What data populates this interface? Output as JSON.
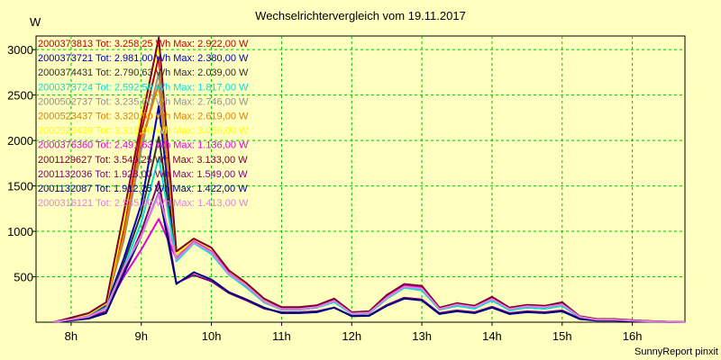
{
  "chart_data": {
    "type": "line",
    "title": "Wechselrichtervergleich vom 19.11.2017",
    "ylabel": "W",
    "footer": "SunnyReport pinxit",
    "x_ticks": [
      "8h",
      "9h",
      "10h",
      "11h",
      "12h",
      "13h",
      "14h",
      "15h",
      "16h"
    ],
    "y_ticks": [
      500,
      1000,
      1500,
      2000,
      2500,
      3000
    ],
    "xlim": [
      "07:30",
      "16:45"
    ],
    "ylim": [
      0,
      3150
    ],
    "grid": true,
    "legend_position": "top-left",
    "x": [
      "07:45",
      "08:00",
      "08:15",
      "08:30",
      "08:45",
      "09:00",
      "09:15",
      "09:30",
      "09:45",
      "10:00",
      "10:15",
      "10:30",
      "10:45",
      "11:00",
      "11:15",
      "11:30",
      "11:45",
      "12:00",
      "12:15",
      "12:30",
      "12:45",
      "13:00",
      "13:15",
      "13:30",
      "13:45",
      "14:00",
      "14:15",
      "14:30",
      "14:45",
      "15:00",
      "15:15",
      "15:30",
      "15:45",
      "16:00",
      "16:15",
      "16:30",
      "16:45"
    ],
    "series": [
      {
        "name": "2000373813",
        "label": "2000373813 Tot: 3.258,25 Wh Max: 2.922,00 W",
        "color": "#C00000",
        "values": [
          0,
          40,
          80,
          200,
          1000,
          2100,
          2922,
          760,
          900,
          800,
          560,
          420,
          240,
          150,
          150,
          170,
          240,
          100,
          110,
          280,
          400,
          390,
          150,
          200,
          170,
          260,
          150,
          180,
          170,
          200,
          60,
          30,
          30,
          20,
          10,
          5,
          0
        ]
      },
      {
        "name": "2000373721",
        "label": "2000373721 Tot: 2.981,00 Wh Max: 2.380,00 W",
        "color": "#0000C0",
        "values": [
          0,
          40,
          70,
          180,
          700,
          1300,
          2380,
          690,
          890,
          770,
          540,
          400,
          230,
          140,
          140,
          160,
          230,
          95,
          105,
          270,
          390,
          370,
          140,
          190,
          160,
          250,
          140,
          170,
          160,
          190,
          55,
          28,
          28,
          18,
          10,
          5,
          0
        ]
      },
      {
        "name": "2000374431",
        "label": "2000374431 Tot: 2.790,63 Wh Max: 2.039,00 W",
        "color": "#303030",
        "values": [
          0,
          35,
          60,
          170,
          650,
          1200,
          2039,
          680,
          880,
          760,
          530,
          390,
          220,
          140,
          140,
          160,
          230,
          95,
          100,
          260,
          380,
          360,
          140,
          180,
          160,
          240,
          140,
          160,
          150,
          180,
          55,
          25,
          25,
          18,
          10,
          5,
          0
        ]
      },
      {
        "name": "2000373724",
        "label": "2000373724 Tot: 2.592,50 Wh Max: 1.817,00 W",
        "color": "#00E0E0",
        "values": [
          0,
          35,
          60,
          160,
          600,
          1100,
          1817,
          670,
          870,
          750,
          520,
          380,
          220,
          140,
          140,
          160,
          220,
          90,
          100,
          260,
          380,
          350,
          140,
          180,
          150,
          240,
          130,
          160,
          150,
          180,
          50,
          25,
          25,
          15,
          8,
          4,
          0
        ]
      },
      {
        "name": "2000502737",
        "label": "2000502737 Tot: 3.235,00 Wh Max: 2.746,00 W",
        "color": "#909090",
        "values": [
          0,
          40,
          80,
          200,
          900,
          1900,
          2746,
          740,
          890,
          790,
          550,
          410,
          240,
          150,
          150,
          170,
          240,
          100,
          110,
          280,
          400,
          380,
          150,
          200,
          170,
          260,
          150,
          180,
          170,
          200,
          60,
          30,
          30,
          20,
          10,
          5,
          0
        ]
      },
      {
        "name": "2000523437",
        "label": "2000523437 Tot: 3.320,50 Wh Max: 2.619,00 W",
        "color": "#E08000",
        "values": [
          0,
          45,
          90,
          210,
          950,
          2000,
          2619,
          760,
          910,
          810,
          560,
          420,
          250,
          160,
          160,
          180,
          250,
          105,
          115,
          290,
          410,
          390,
          150,
          200,
          170,
          270,
          150,
          180,
          170,
          210,
          60,
          30,
          30,
          20,
          10,
          5,
          0
        ]
      },
      {
        "name": "2000523439",
        "label": "2000523439 Tot: 3.316,00 Wh Max: 3.056,00 W",
        "color": "#FFFF00",
        "values": [
          0,
          45,
          90,
          210,
          1100,
          2300,
          3056,
          750,
          900,
          800,
          560,
          420,
          250,
          160,
          160,
          180,
          250,
          105,
          115,
          290,
          410,
          390,
          150,
          200,
          170,
          270,
          150,
          180,
          170,
          210,
          60,
          30,
          30,
          20,
          10,
          5,
          0
        ]
      },
      {
        "name": "2000376360",
        "label": "2000376360 Tot: 2.491,63 Wh Max: 1.136,00 W",
        "color": "#E000E0",
        "values": [
          0,
          30,
          60,
          150,
          500,
          800,
          1136,
          700,
          890,
          780,
          540,
          400,
          230,
          150,
          150,
          170,
          240,
          100,
          110,
          280,
          400,
          380,
          150,
          200,
          170,
          260,
          150,
          180,
          170,
          200,
          60,
          30,
          30,
          20,
          10,
          5,
          0
        ]
      },
      {
        "name": "2001129627",
        "label": "2001129627 Tot: 3.540,25 Wh Max: 3.133,00 W",
        "color": "#800030",
        "values": [
          0,
          50,
          100,
          220,
          1200,
          2200,
          3133,
          780,
          920,
          820,
          570,
          430,
          260,
          165,
          165,
          185,
          260,
          110,
          120,
          300,
          420,
          400,
          160,
          210,
          180,
          280,
          160,
          190,
          180,
          220,
          65,
          35,
          35,
          22,
          12,
          5,
          0
        ]
      },
      {
        "name": "2001132036",
        "label": "2001132036 Tot: 1.928,00 Wh Max: 1.549,00 W",
        "color": "#800080",
        "values": [
          0,
          25,
          50,
          120,
          550,
          1000,
          1549,
          430,
          520,
          450,
          320,
          240,
          150,
          110,
          110,
          120,
          160,
          70,
          75,
          190,
          270,
          250,
          100,
          130,
          110,
          170,
          100,
          120,
          110,
          130,
          40,
          20,
          20,
          12,
          6,
          3,
          0
        ]
      },
      {
        "name": "2001132087",
        "label": "2001132087 Tot: 1.912,25 Wh Max: 1.422,00 W",
        "color": "#000080",
        "values": [
          0,
          20,
          40,
          100,
          530,
          950,
          1422,
          420,
          550,
          470,
          330,
          250,
          160,
          100,
          100,
          110,
          160,
          65,
          70,
          180,
          260,
          240,
          90,
          120,
          100,
          160,
          90,
          110,
          100,
          120,
          35,
          18,
          18,
          10,
          5,
          3,
          0
        ]
      },
      {
        "name": "2000316121",
        "label": "2000316121 Tot: 2.535,00 Wh Max: 1.413,00 W",
        "color": "#E080E0",
        "values": [
          0,
          30,
          60,
          150,
          600,
          950,
          1413,
          690,
          880,
          770,
          530,
          400,
          230,
          145,
          145,
          165,
          235,
          95,
          105,
          270,
          390,
          370,
          145,
          195,
          165,
          255,
          145,
          175,
          165,
          195,
          58,
          28,
          28,
          18,
          9,
          4,
          0
        ]
      }
    ]
  }
}
